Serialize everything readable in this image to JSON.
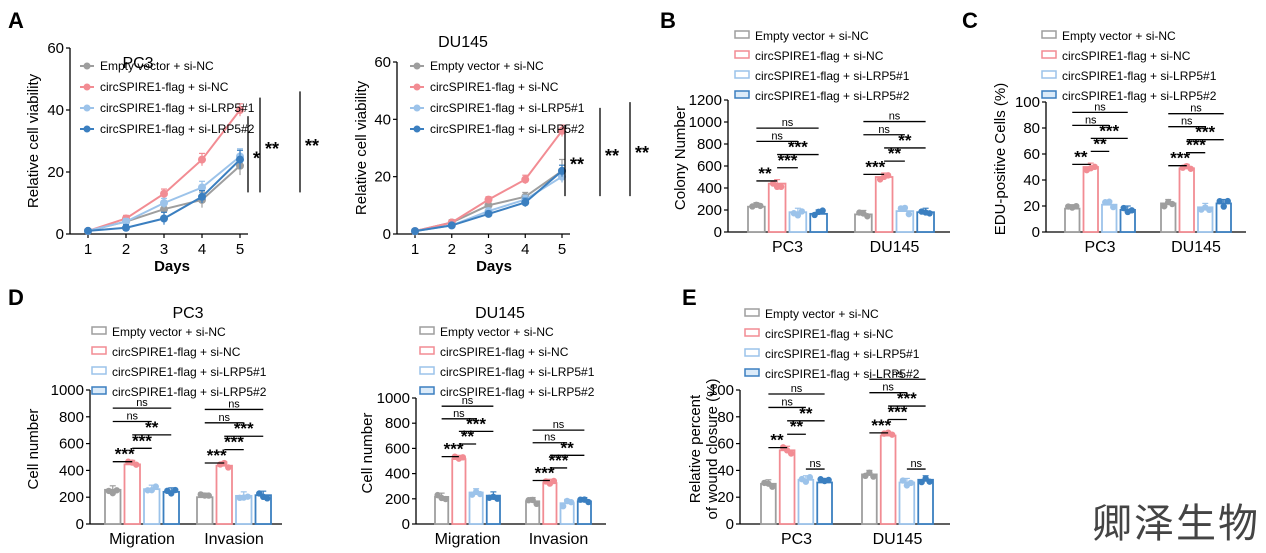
{
  "colors": {
    "empty": "#9e9e9e",
    "circ": "#f28c93",
    "lrp1": "#9cc3ea",
    "lrp2": "#3b7fc0",
    "axis": "#000000"
  },
  "legend_labels": [
    "Empty vector + si-NC",
    "circSPIRE1-flag + si-NC",
    "circSPIRE1-flag + si-LRP5#1",
    "circSPIRE1-flag + si-LRP5#2"
  ],
  "watermark": "卿泽生物",
  "chart_data": [
    {
      "panel": "A",
      "type": "line",
      "title": "PC3",
      "xlabel": "Days",
      "ylabel": "Relative cell viability",
      "x": [
        1,
        2,
        3,
        4,
        5
      ],
      "ylim": [
        0,
        60
      ],
      "yticks": [
        0,
        20,
        40,
        60
      ],
      "series": [
        {
          "name": "Empty vector + si-NC",
          "values": [
            1,
            4,
            8,
            11,
            22
          ],
          "err": [
            0.5,
            1,
            2,
            2.5,
            3
          ]
        },
        {
          "name": "circSPIRE1-flag + si-NC",
          "values": [
            1,
            5,
            13,
            24,
            40
          ],
          "err": [
            0.5,
            1,
            1.5,
            2,
            2
          ]
        },
        {
          "name": "circSPIRE1-flag + si-LRP5#1",
          "values": [
            1,
            4,
            10,
            15,
            25
          ],
          "err": [
            0.5,
            1,
            1.5,
            2,
            2.5
          ]
        },
        {
          "name": "circSPIRE1-flag + si-LRP5#2",
          "values": [
            1,
            2,
            5,
            12,
            24
          ],
          "err": [
            0.5,
            1,
            2,
            2,
            3
          ]
        }
      ],
      "significance": [
        "*",
        "**",
        "**"
      ]
    },
    {
      "panel": "A",
      "type": "line",
      "title": "DU145",
      "xlabel": "Days",
      "ylabel": "Relative cell viability",
      "x": [
        1,
        2,
        3,
        4,
        5
      ],
      "ylim": [
        0,
        60
      ],
      "yticks": [
        0,
        20,
        40,
        60
      ],
      "series": [
        {
          "name": "Empty vector + si-NC",
          "values": [
            1,
            4,
            10,
            13,
            22
          ],
          "err": [
            0.5,
            1,
            1,
            1.5,
            4
          ]
        },
        {
          "name": "circSPIRE1-flag + si-NC",
          "values": [
            1,
            4,
            12,
            19,
            36
          ],
          "err": [
            0.5,
            0.8,
            1,
            1.5,
            2
          ]
        },
        {
          "name": "circSPIRE1-flag + si-LRP5#1",
          "values": [
            1,
            3,
            8,
            12,
            20
          ],
          "err": [
            0.5,
            0.8,
            1,
            1.5,
            2
          ]
        },
        {
          "name": "circSPIRE1-flag + si-LRP5#2",
          "values": [
            1,
            3,
            7,
            11,
            22
          ],
          "err": [
            0.5,
            0.8,
            1,
            1.5,
            2
          ]
        }
      ],
      "significance": [
        "**",
        "**",
        "**"
      ]
    },
    {
      "panel": "B",
      "type": "bar",
      "ylabel": "Colony Number",
      "categories": [
        "PC3",
        "DU145"
      ],
      "ylim": [
        0,
        1200
      ],
      "yticks": [
        0,
        200,
        400,
        600,
        800,
        1000,
        1200
      ],
      "series": [
        {
          "name": "Empty vector + si-NC",
          "values": [
            230,
            160
          ]
        },
        {
          "name": "circSPIRE1-flag + si-NC",
          "values": [
            440,
            500
          ]
        },
        {
          "name": "circSPIRE1-flag + si-LRP5#1",
          "values": [
            180,
            190
          ]
        },
        {
          "name": "circSPIRE1-flag + si-LRP5#2",
          "values": [
            165,
            180
          ]
        }
      ],
      "brackets": [
        [
          {
            "from": 0,
            "to": 1,
            "label": "**"
          },
          {
            "from": 1,
            "to": 2,
            "label": "***"
          },
          {
            "from": 1,
            "to": 3,
            "label": "***"
          },
          {
            "from": 0,
            "to": 2,
            "label": "ns"
          },
          {
            "from": 0,
            "to": 3,
            "label": "ns"
          }
        ],
        [
          {
            "from": 0,
            "to": 1,
            "label": "***"
          },
          {
            "from": 1,
            "to": 2,
            "label": "**"
          },
          {
            "from": 1,
            "to": 3,
            "label": "**"
          },
          {
            "from": 0,
            "to": 2,
            "label": "ns"
          },
          {
            "from": 0,
            "to": 3,
            "label": "ns"
          }
        ]
      ]
    },
    {
      "panel": "C",
      "type": "bar",
      "ylabel": "EDU-positive Cells (%)",
      "categories": [
        "PC3",
        "DU145"
      ],
      "ylim": [
        0,
        100
      ],
      "yticks": [
        0,
        20,
        40,
        60,
        80,
        100
      ],
      "series": [
        {
          "name": "Empty vector + si-NC",
          "values": [
            18,
            22
          ]
        },
        {
          "name": "circSPIRE1-flag + si-NC",
          "values": [
            50,
            49
          ]
        },
        {
          "name": "circSPIRE1-flag + si-LRP5#1",
          "values": [
            21,
            19
          ]
        },
        {
          "name": "circSPIRE1-flag + si-LRP5#2",
          "values": [
            17,
            22
          ]
        }
      ],
      "brackets": [
        [
          {
            "from": 0,
            "to": 1,
            "label": "**"
          },
          {
            "from": 1,
            "to": 2,
            "label": "**"
          },
          {
            "from": 1,
            "to": 3,
            "label": "***"
          },
          {
            "from": 0,
            "to": 2,
            "label": "ns"
          },
          {
            "from": 0,
            "to": 3,
            "label": "ns"
          }
        ],
        [
          {
            "from": 0,
            "to": 1,
            "label": "***"
          },
          {
            "from": 1,
            "to": 2,
            "label": "***"
          },
          {
            "from": 1,
            "to": 3,
            "label": "***"
          },
          {
            "from": 0,
            "to": 2,
            "label": "ns"
          },
          {
            "from": 0,
            "to": 3,
            "label": "ns"
          }
        ]
      ]
    },
    {
      "panel": "D",
      "type": "bar",
      "title": "PC3",
      "ylabel": "Cell number",
      "categories": [
        "Migration",
        "Invasion"
      ],
      "ylim": [
        0,
        1000
      ],
      "yticks": [
        0,
        200,
        400,
        600,
        800,
        1000
      ],
      "series": [
        {
          "name": "Empty vector + si-NC",
          "values": [
            255,
            200
          ]
        },
        {
          "name": "circSPIRE1-flag + si-NC",
          "values": [
            445,
            435
          ]
        },
        {
          "name": "circSPIRE1-flag + si-LRP5#1",
          "values": [
            260,
            210
          ]
        },
        {
          "name": "circSPIRE1-flag + si-LRP5#2",
          "values": [
            240,
            215
          ]
        }
      ],
      "brackets": [
        [
          {
            "from": 0,
            "to": 1,
            "label": "***"
          },
          {
            "from": 1,
            "to": 2,
            "label": "***"
          },
          {
            "from": 1,
            "to": 3,
            "label": "**"
          },
          {
            "from": 0,
            "to": 2,
            "label": "ns"
          },
          {
            "from": 0,
            "to": 3,
            "label": "ns"
          }
        ],
        [
          {
            "from": 0,
            "to": 1,
            "label": "***"
          },
          {
            "from": 1,
            "to": 2,
            "label": "***"
          },
          {
            "from": 1,
            "to": 3,
            "label": "***"
          },
          {
            "from": 0,
            "to": 2,
            "label": "ns"
          },
          {
            "from": 0,
            "to": 3,
            "label": "ns"
          }
        ]
      ]
    },
    {
      "panel": "D",
      "type": "bar",
      "title": "DU145",
      "ylabel": "Cell number",
      "categories": [
        "Migration",
        "Invasion"
      ],
      "ylim": [
        0,
        1000
      ],
      "yticks": [
        0,
        200,
        400,
        600,
        800,
        1000
      ],
      "series": [
        {
          "name": "Empty vector + si-NC",
          "values": [
            215,
            180
          ]
        },
        {
          "name": "circSPIRE1-flag + si-NC",
          "values": [
            515,
            325
          ]
        },
        {
          "name": "circSPIRE1-flag + si-LRP5#1",
          "values": [
            250,
            165
          ]
        },
        {
          "name": "circSPIRE1-flag + si-LRP5#2",
          "values": [
            225,
            180
          ]
        }
      ],
      "brackets": [
        [
          {
            "from": 0,
            "to": 1,
            "label": "***"
          },
          {
            "from": 1,
            "to": 2,
            "label": "**"
          },
          {
            "from": 1,
            "to": 3,
            "label": "***"
          },
          {
            "from": 0,
            "to": 2,
            "label": "ns"
          },
          {
            "from": 0,
            "to": 3,
            "label": "ns"
          }
        ],
        [
          {
            "from": 0,
            "to": 1,
            "label": "***"
          },
          {
            "from": 1,
            "to": 2,
            "label": "***"
          },
          {
            "from": 1,
            "to": 3,
            "label": "**"
          },
          {
            "from": 0,
            "to": 2,
            "label": "ns"
          },
          {
            "from": 0,
            "to": 3,
            "label": "ns"
          }
        ]
      ]
    },
    {
      "panel": "E",
      "type": "bar",
      "ylabel": "Relative percent\nof wound closure (%)",
      "categories": [
        "PC3",
        "DU145"
      ],
      "ylim": [
        0,
        100
      ],
      "yticks": [
        0,
        20,
        40,
        60,
        80,
        100
      ],
      "series": [
        {
          "name": "Empty vector + si-NC",
          "values": [
            30,
            37
          ]
        },
        {
          "name": "circSPIRE1-flag + si-NC",
          "values": [
            55,
            66
          ]
        },
        {
          "name": "circSPIRE1-flag + si-LRP5#1",
          "values": [
            33,
            31
          ]
        },
        {
          "name": "circSPIRE1-flag + si-LRP5#2",
          "values": [
            31,
            33
          ]
        }
      ],
      "brackets": [
        [
          {
            "from": 0,
            "to": 1,
            "label": "**"
          },
          {
            "from": 1,
            "to": 2,
            "label": "**"
          },
          {
            "from": 1,
            "to": 3,
            "label": "**"
          },
          {
            "from": 2,
            "to": 3,
            "label": "ns"
          },
          {
            "from": 0,
            "to": 2,
            "label": "ns"
          },
          {
            "from": 0,
            "to": 3,
            "label": "ns"
          }
        ],
        [
          {
            "from": 0,
            "to": 1,
            "label": "***"
          },
          {
            "from": 1,
            "to": 2,
            "label": "***"
          },
          {
            "from": 1,
            "to": 3,
            "label": "***"
          },
          {
            "from": 2,
            "to": 3,
            "label": "ns"
          },
          {
            "from": 0,
            "to": 2,
            "label": "ns"
          },
          {
            "from": 0,
            "to": 3,
            "label": "ns"
          }
        ]
      ]
    }
  ],
  "panel_letters": [
    "A",
    "B",
    "C",
    "D",
    "E"
  ]
}
